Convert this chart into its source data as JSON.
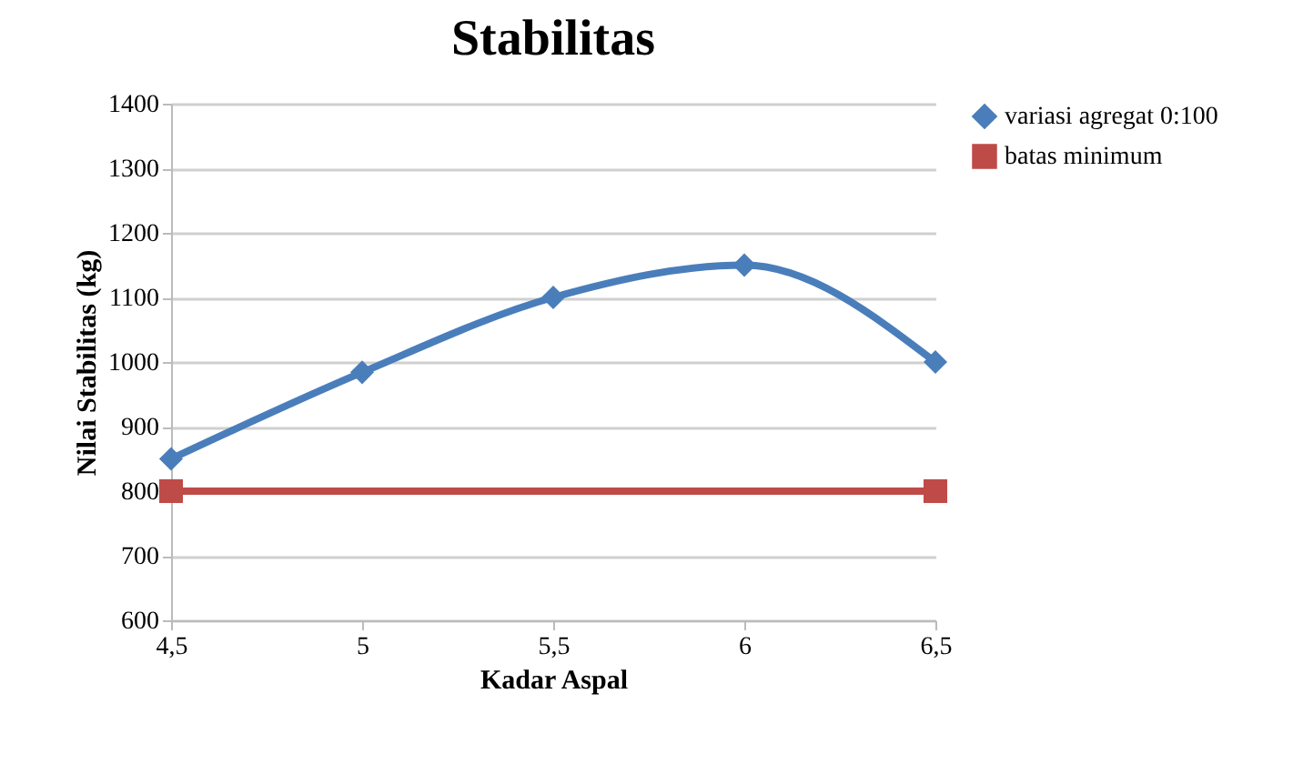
{
  "chart_data": {
    "type": "line",
    "title": "Stabilitas",
    "xlabel": "Kadar Aspal",
    "ylabel": "Nilai Stabilitas (kg)",
    "xlim": [
      4.5,
      6.5
    ],
    "xticks": [
      {
        "value": 4.5,
        "label": "4,5"
      },
      5,
      {
        "value": 5.5,
        "label": "5,5"
      },
      6,
      {
        "value": 6.5,
        "label": "6,5"
      }
    ],
    "ylim": [
      600,
      1400
    ],
    "yticks": [
      600,
      700,
      800,
      900,
      1000,
      1100,
      1200,
      1300,
      1400
    ],
    "grid": "y",
    "legend": "right",
    "line_style": "solid",
    "series": [
      {
        "name": "variasi agregat 0:100",
        "color": "#4a7ebb",
        "marker": "diamond",
        "x": [
          4.5,
          5,
          5.5,
          6,
          6.5
        ],
        "values": [
          850,
          984,
          1100,
          1150,
          1000
        ]
      },
      {
        "name": "batas minimum",
        "color": "#be4b48",
        "marker": "square",
        "x": [
          4.5,
          6.5
        ],
        "values": [
          800,
          800
        ]
      }
    ]
  }
}
